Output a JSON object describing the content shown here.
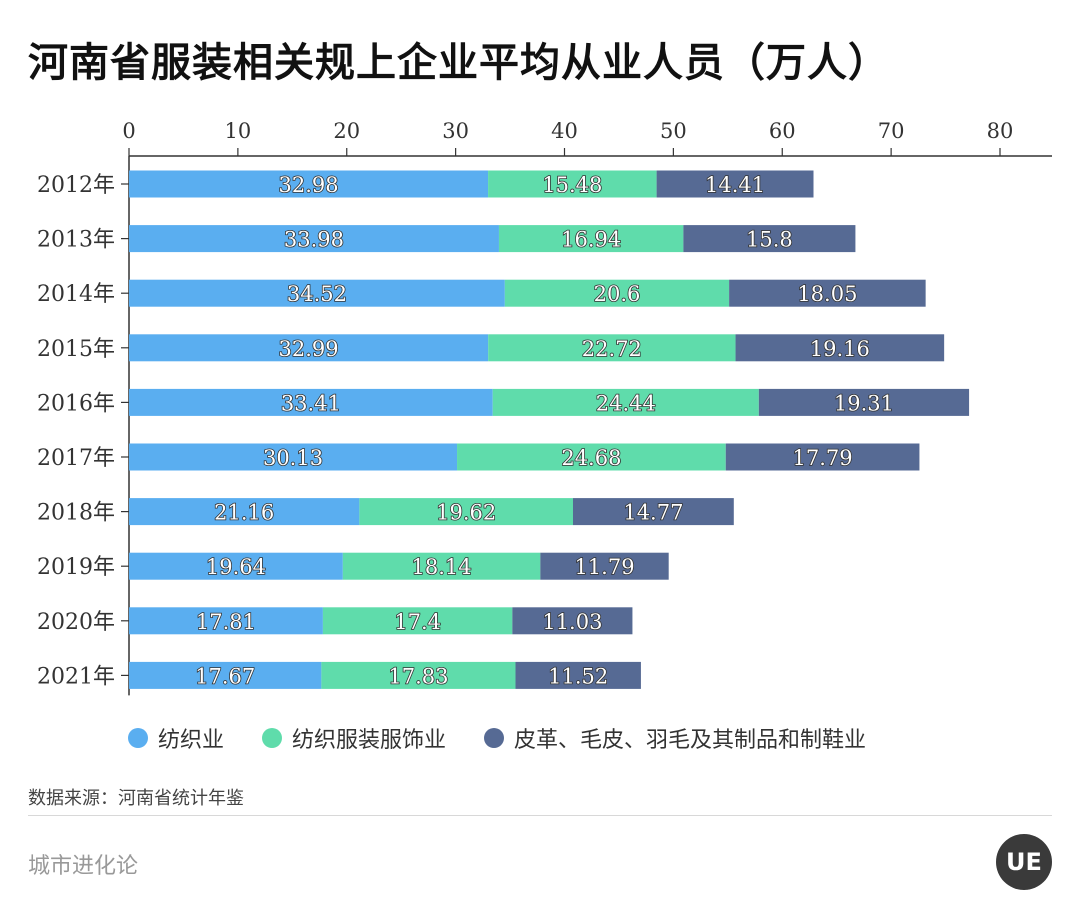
{
  "page_title": "河南省服装相关规上企业平均从业人员（万人）",
  "source_text": "数据来源：河南省统计年鉴",
  "brand_text": "城市进化论",
  "logo_text": "UE",
  "colors": {
    "textile": "#5aaef0",
    "garment": "#5fdcab",
    "leather": "#566a94",
    "axis": "#333333"
  },
  "chart_data": {
    "type": "bar",
    "orientation": "horizontal",
    "stacked": true,
    "title": "河南省服装相关规上企业平均从业人员（万人）",
    "xlabel": "",
    "ylabel": "",
    "xlim": [
      0,
      85
    ],
    "xticks": [
      0,
      10,
      20,
      30,
      40,
      50,
      60,
      70,
      80
    ],
    "axis_position": "top",
    "legend_position": "bottom",
    "categories": [
      "2012年",
      "2013年",
      "2014年",
      "2015年",
      "2016年",
      "2017年",
      "2018年",
      "2019年",
      "2020年",
      "2021年"
    ],
    "series": [
      {
        "name": "纺织业",
        "color_key": "textile",
        "values": [
          32.98,
          33.98,
          34.52,
          32.99,
          33.41,
          30.13,
          21.16,
          19.64,
          17.81,
          17.67
        ]
      },
      {
        "name": "纺织服装服饰业",
        "color_key": "garment",
        "values": [
          15.48,
          16.94,
          20.6,
          22.72,
          24.44,
          24.68,
          19.62,
          18.14,
          17.4,
          17.83
        ]
      },
      {
        "name": "皮革、毛皮、羽毛及其制品和制鞋业",
        "color_key": "leather",
        "values": [
          14.41,
          15.8,
          18.05,
          19.16,
          19.31,
          17.79,
          14.77,
          11.79,
          11.03,
          11.52
        ]
      }
    ]
  }
}
